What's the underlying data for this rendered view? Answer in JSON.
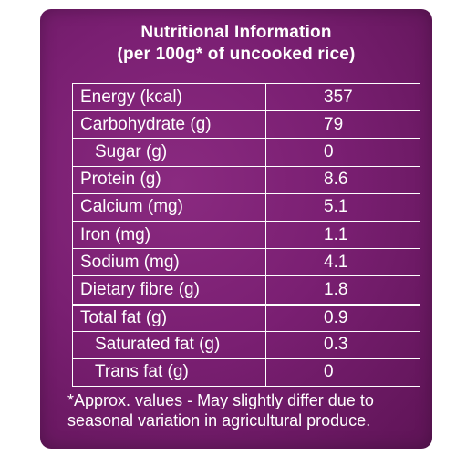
{
  "colors": {
    "panel_background": "#7a1f72",
    "text": "#ffffff",
    "rule": "#ffffff"
  },
  "heading": {
    "line1": "Nutritional Information",
    "line2": "(per 100g* of uncooked rice)"
  },
  "rows": [
    {
      "label": "Energy (kcal)",
      "value": "357"
    },
    {
      "label": "Carbohydrate (g)",
      "value": "79"
    },
    {
      "label": "Sugar (g)",
      "value": "0"
    },
    {
      "label": "Protein (g)",
      "value": "8.6"
    },
    {
      "label": "Calcium (mg)",
      "value": "5.1"
    },
    {
      "label": "Iron (mg)",
      "value": "1.1"
    },
    {
      "label": "Sodium (mg)",
      "value": "4.1"
    },
    {
      "label": "Dietary fibre (g)",
      "value": "1.8"
    },
    {
      "label": "Total fat (g)",
      "value": "0.9"
    },
    {
      "label": "Saturated fat (g)",
      "value": "0.3"
    },
    {
      "label": "Trans fat (g)",
      "value": "0"
    }
  ],
  "footnote": {
    "line1": "*Approx. values - May slightly differ due to",
    "line2": "seasonal variation in agricultural produce."
  }
}
